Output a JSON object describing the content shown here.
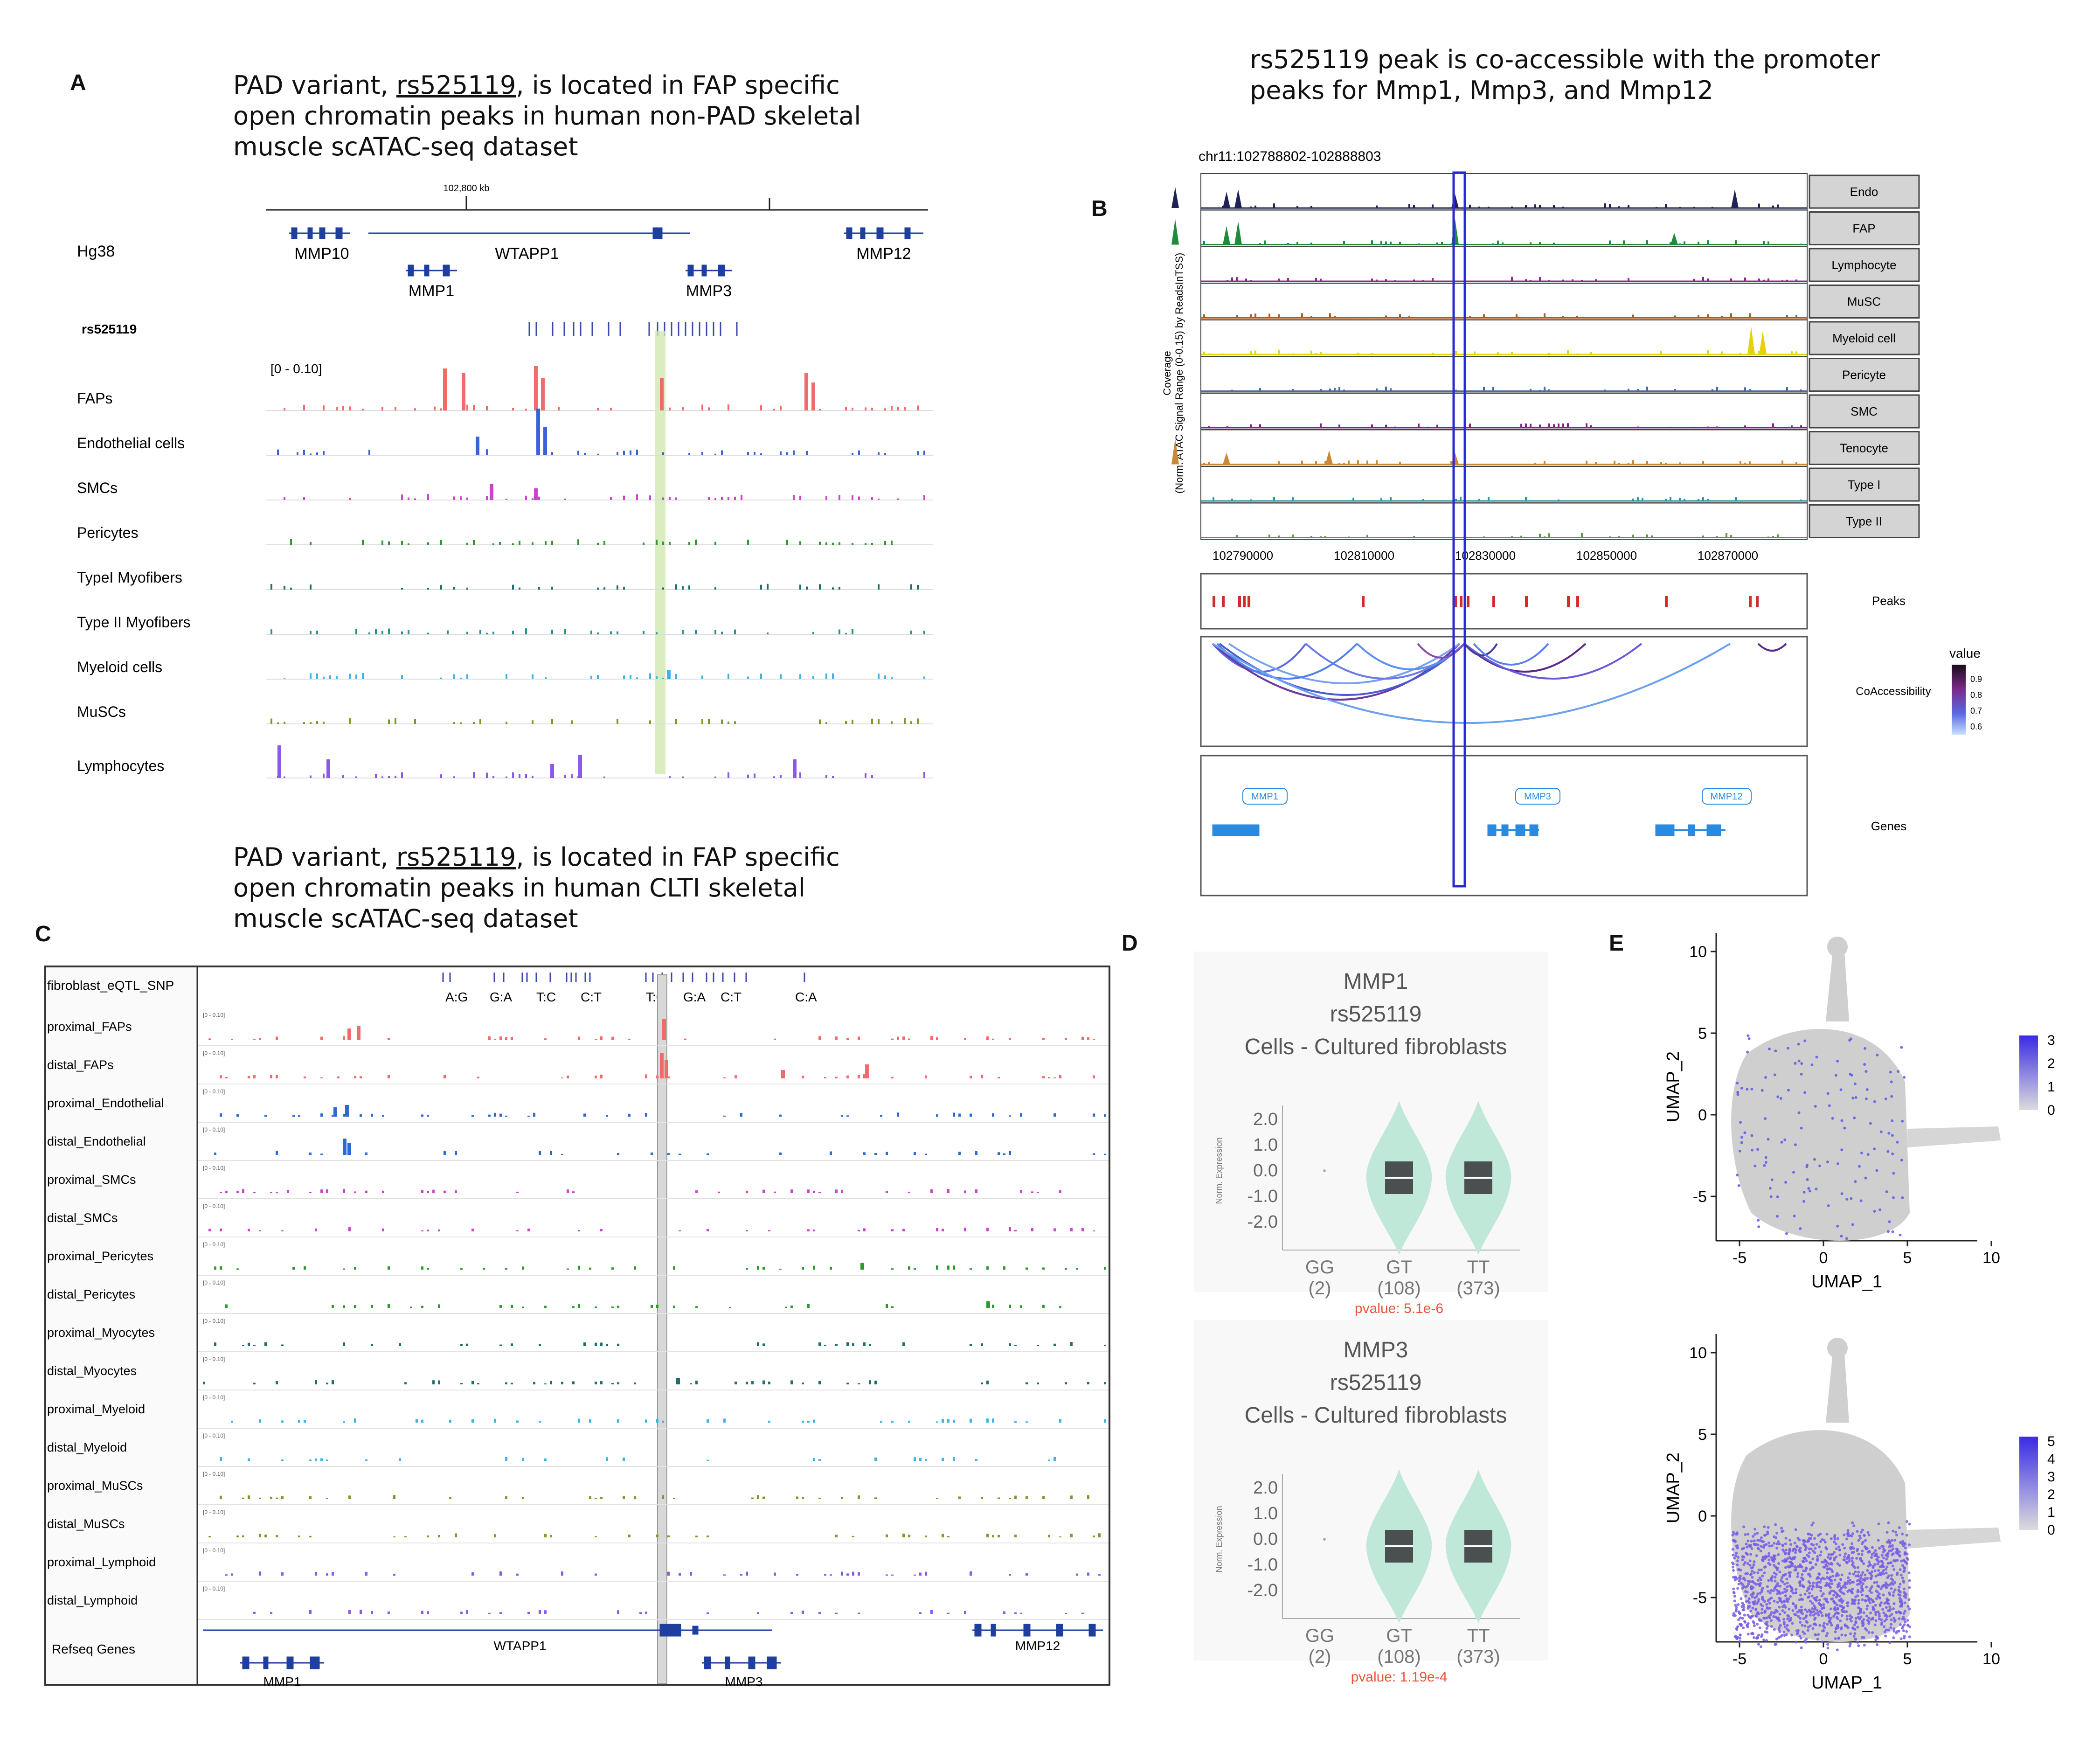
{
  "panel_a": {
    "letter": "A",
    "caption_pre": "PAD variant, ",
    "caption_snp": "rs525119",
    "caption_post": ", is located in FAP specific\nopen chromatin peaks in human non-PAD skeletal\nmuscle scATAC-seq dataset",
    "scale_label": "102,800 kb",
    "genome": "Hg38",
    "genes_top": [
      "MMP10",
      "WTAPP1",
      "MMP12"
    ],
    "genes_bottom": [
      "MMP1",
      "MMP3"
    ],
    "snp_track": "rs525119",
    "range_label": "[0 - 0.10]",
    "tracks": [
      {
        "name": "FAPs",
        "color": "#f26b6b"
      },
      {
        "name": "Endothelial cells",
        "color": "#3a63d6"
      },
      {
        "name": "SMCs",
        "color": "#cc44cc"
      },
      {
        "name": "Pericytes",
        "color": "#2e9a2e"
      },
      {
        "name": "TypeI Myofibers",
        "color": "#1f6f6f"
      },
      {
        "name": "Type II Myofibers",
        "color": "#2a8f8f"
      },
      {
        "name": "Myeloid cells",
        "color": "#3cb4e6"
      },
      {
        "name": "MuSCs",
        "color": "#7a9a2a"
      },
      {
        "name": "Lymphocytes",
        "color": "#8a5ae6"
      }
    ]
  },
  "panel_b": {
    "letter": "B",
    "caption": "rs525119 peak is co-accessible with the promoter\npeaks for Mmp1, Mmp3, and Mmp12",
    "region": "chr11:102788802-102888803",
    "y_label_1": "Coverage",
    "y_label_2": "(Norm. ATAC Signal Range (0-0.15) by ReadsInTSS)",
    "tracks": [
      {
        "name": "Endo",
        "color": "#1e2255"
      },
      {
        "name": "FAP",
        "color": "#1e8c3a"
      },
      {
        "name": "Lymphocyte",
        "color": "#8a2a8a"
      },
      {
        "name": "MuSC",
        "color": "#b05a20"
      },
      {
        "name": "Myeloid cell",
        "color": "#e6d200"
      },
      {
        "name": "Pericyte",
        "color": "#4a6aa0"
      },
      {
        "name": "SMC",
        "color": "#7a2a7a"
      },
      {
        "name": "Tenocyte",
        "color": "#c88a3a"
      },
      {
        "name": "Type I",
        "color": "#2a9aa0"
      },
      {
        "name": "Type II",
        "color": "#5a9a3a"
      }
    ],
    "x_ticks": [
      "102790000",
      "102810000",
      "102830000",
      "102850000",
      "102870000"
    ],
    "peaks_label": "Peaks",
    "coaccess_label": "CoAccessibility",
    "genes_label": "Genes",
    "genes": [
      "MMP1",
      "MMP3",
      "MMP12"
    ],
    "legend_title": "value",
    "legend_ticks": [
      "0.9",
      "0.8",
      "0.7",
      "0.6"
    ]
  },
  "panel_c": {
    "letter": "C",
    "caption_pre": "PAD variant, ",
    "caption_snp": "rs525119",
    "caption_post": ", is located in FAP specific\nopen chromatin peaks in human CLTI skeletal\nmuscle scATAC-seq dataset",
    "snp_track": "fibroblast_eQTL_SNP",
    "alleles": [
      "A:G",
      "G:A",
      "T:C",
      "C:T",
      "T:C",
      "G:A",
      "C:T",
      "C:A"
    ],
    "range_label": "[0 - 0.10]",
    "tracks": [
      {
        "name": "proximal_FAPs",
        "color": "#f26b6b"
      },
      {
        "name": "distal_FAPs",
        "color": "#f26b6b"
      },
      {
        "name": "proximal_Endothelial",
        "color": "#2a6ad6"
      },
      {
        "name": "distal_Endothelial",
        "color": "#2a6ad6"
      },
      {
        "name": "proximal_SMCs",
        "color": "#cc44cc"
      },
      {
        "name": "distal_SMCs",
        "color": "#cc44cc"
      },
      {
        "name": "proximal_Pericytes",
        "color": "#2e9a2e"
      },
      {
        "name": "distal_Pericytes",
        "color": "#2e9a2e"
      },
      {
        "name": "proximal_Myocytes",
        "color": "#1f6f6f"
      },
      {
        "name": "distal_Myocytes",
        "color": "#1f6f6f"
      },
      {
        "name": "proximal_Myeloid",
        "color": "#3cb4e6"
      },
      {
        "name": "distal_Myeloid",
        "color": "#3cb4e6"
      },
      {
        "name": "proximal_MuSCs",
        "color": "#7a9a2a"
      },
      {
        "name": "distal_MuSCs",
        "color": "#7a9a2a"
      },
      {
        "name": "proximal_Lymphoid",
        "color": "#8a5ae6"
      },
      {
        "name": "distal_Lymphoid",
        "color": "#8a5ae6"
      }
    ],
    "refseq_label": "Refseq Genes",
    "genes": [
      "WTAPP1",
      "MMP12",
      "MMP1",
      "MMP3"
    ]
  },
  "panel_d": {
    "letter": "D",
    "ylabel": "Norm. Expression",
    "plots": [
      {
        "gene": "MMP1",
        "snp": "rs525119",
        "tissue": "Cells - Cultured fibroblasts",
        "genotypes": [
          "GG",
          "GT",
          "TT"
        ],
        "counts": [
          "(2)",
          "(108)",
          "(373)"
        ],
        "pvalue": "pvalue: 5.1e-6",
        "y_ticks": [
          "2.0",
          "1.0",
          "0.0",
          "-1.0",
          "-2.0"
        ]
      },
      {
        "gene": "MMP3",
        "snp": "rs525119",
        "tissue": "Cells - Cultured fibroblasts",
        "genotypes": [
          "GG",
          "GT",
          "TT"
        ],
        "counts": [
          "(2)",
          "(108)",
          "(373)"
        ],
        "pvalue": "pvalue: 1.19e-4",
        "y_ticks": [
          "2.0",
          "1.0",
          "0.0",
          "-1.0",
          "-2.0"
        ]
      }
    ]
  },
  "panel_e": {
    "letter": "E",
    "xlabel": "UMAP_1",
    "ylabel": "UMAP_2",
    "plots": [
      {
        "x_ticks": [
          "-5",
          "0",
          "5",
          "10"
        ],
        "y_ticks": [
          "10",
          "5",
          "0",
          "-5"
        ],
        "legend": [
          "3",
          "2",
          "1",
          "0"
        ]
      },
      {
        "x_ticks": [
          "-5",
          "0",
          "5",
          "10"
        ],
        "y_ticks": [
          "10",
          "5",
          "0",
          "-5"
        ],
        "legend": [
          "5",
          "4",
          "3",
          "2",
          "1",
          "0"
        ]
      }
    ]
  }
}
